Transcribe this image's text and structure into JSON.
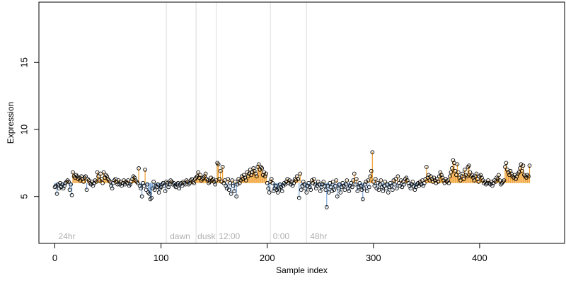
{
  "chart_data": {
    "type": "scatter",
    "title": "",
    "xlabel": "Sample index",
    "ylabel": "Expression",
    "xlim": [
      -15,
      480
    ],
    "ylim": [
      1.5,
      19.5
    ],
    "xticks": [
      0,
      100,
      200,
      300,
      400
    ],
    "yticks": [
      5,
      10,
      15
    ],
    "baseline": 6.0,
    "colors": {
      "above_baseline": "#f0a030",
      "below_baseline": "#7aa6d8",
      "vertical_lines": "#dcdcdc",
      "vertical_labels": "#b0b0b0",
      "point_stroke": "#000000",
      "axis": "#000000"
    },
    "vertical_markers": [
      {
        "x": 105,
        "label": "24hr",
        "label_x": 2
      },
      {
        "x": 133,
        "label": "dawn",
        "label_x": 107
      },
      {
        "x": 152,
        "label": "dusk",
        "label_x": 133
      },
      {
        "x": 203,
        "label": "12:00",
        "label_x": 153
      },
      {
        "x": 237,
        "label": "0:00",
        "label_x": 204
      },
      {
        "x": null,
        "label": "48hr",
        "label_x": 239
      }
    ],
    "values": [
      5.7,
      5.8,
      5.2,
      5.9,
      5.6,
      6.0,
      5.7,
      5.9,
      5.6,
      5.8,
      6.0,
      6.1,
      6.2,
      6.1,
      5.5,
      5.9,
      5.1,
      6.8,
      6.5,
      6.4,
      6.6,
      6.5,
      6.3,
      6.4,
      6.2,
      6.5,
      6.3,
      6.1,
      6.4,
      6.5,
      5.5,
      6.3,
      6.2,
      6.0,
      5.9,
      6.1,
      5.8,
      6.0,
      6.2,
      6.1,
      6.8,
      6.5,
      6.2,
      6.7,
      6.3,
      6.0,
      6.8,
      6.4,
      6.6,
      6.5,
      6.3,
      6.2,
      6.1,
      5.8,
      5.6,
      6.0,
      6.2,
      6.3,
      6.1,
      5.9,
      6.2,
      5.9,
      6.1,
      5.8,
      6.0,
      6.2,
      5.9,
      6.1,
      6.0,
      6.2,
      5.8,
      5.9,
      6.1,
      6.3,
      6.5,
      6.4,
      6.2,
      6.1,
      6.0,
      7.1,
      5.8,
      5.6,
      5.0,
      6.0,
      5.8,
      7.0,
      5.5,
      5.9,
      5.3,
      5.2,
      4.8,
      4.9,
      5.6,
      6.1,
      5.5,
      5.8,
      5.7,
      5.9,
      5.3,
      5.6,
      5.7,
      5.9,
      6.0,
      5.8,
      5.4,
      6.1,
      6.0,
      5.7,
      5.9,
      6.2,
      6.1,
      5.9,
      6.0,
      5.8,
      5.7,
      5.9,
      6.0,
      5.6,
      5.9,
      6.0,
      5.8,
      6.1,
      6.0,
      5.9,
      6.2,
      6.1,
      5.9,
      6.0,
      6.2,
      6.3,
      6.1,
      6.0,
      6.3,
      6.4,
      6.5,
      6.8,
      6.4,
      6.6,
      6.2,
      6.3,
      6.4,
      6.5,
      6.7,
      6.3,
      6.2,
      6.0,
      6.1,
      6.4,
      6.2,
      6.3,
      6.1,
      5.9,
      6.2,
      7.5,
      7.4,
      6.3,
      6.9,
      6.1,
      7.2,
      6.0,
      6.2,
      5.8,
      5.6,
      6.3,
      5.5,
      6.0,
      5.2,
      6.2,
      5.8,
      5.4,
      6.1,
      5.0,
      5.9,
      6.3,
      6.0,
      6.2,
      6.5,
      6.3,
      6.6,
      6.4,
      6.2,
      6.8,
      6.5,
      6.7,
      7.0,
      6.6,
      6.8,
      7.1,
      6.9,
      6.7,
      6.5,
      7.2,
      7.4,
      7.0,
      7.2,
      7.1,
      6.6,
      6.8,
      6.5,
      6.7,
      6.0,
      5.6,
      5.3,
      6.1,
      6.3,
      6.0,
      5.4,
      5.6,
      5.8,
      5.5,
      5.3,
      5.6,
      5.9,
      5.7,
      5.4,
      5.8,
      6.0,
      5.9,
      6.1,
      6.3,
      6.0,
      6.2,
      5.9,
      6.1,
      5.8,
      6.0,
      6.3,
      6.2,
      6.5,
      6.3,
      4.9,
      6.7,
      5.5,
      5.8,
      6.1,
      5.9,
      5.6,
      5.3,
      5.8,
      6.0,
      5.7,
      5.5,
      6.2,
      6.0,
      6.3,
      5.9,
      5.6,
      5.8,
      6.1,
      5.9,
      5.4,
      5.7,
      5.9,
      6.1,
      5.8,
      5.5,
      4.2,
      5.8,
      5.3,
      6.0,
      5.7,
      5.4,
      6.1,
      5.5,
      5.8,
      6.2,
      5.0,
      5.6,
      5.9,
      5.3,
      5.7,
      6.0,
      5.8,
      5.5,
      5.9,
      6.2,
      5.6,
      5.4,
      5.8,
      6.0,
      5.7,
      6.2,
      6.7,
      5.9,
      6.3,
      5.4,
      5.7,
      6.0,
      5.8,
      5.5,
      4.8,
      5.6,
      5.9,
      6.1,
      5.4,
      6.2,
      5.7,
      6.5,
      6.9,
      8.3,
      6.1,
      5.8,
      6.3,
      5.6,
      6.0,
      5.5,
      5.9,
      6.2,
      5.7,
      5.4,
      5.8,
      6.1,
      5.6,
      5.9,
      5.3,
      5.7,
      6.0,
      5.8,
      5.5,
      6.2,
      5.9,
      6.3,
      5.6,
      6.5,
      6.0,
      5.8,
      6.2,
      5.7,
      6.1,
      5.9,
      6.3,
      6.4,
      6.2,
      6.0,
      5.8,
      5.6,
      5.9,
      6.1,
      5.8,
      5.5,
      5.7,
      5.9,
      6.0,
      5.8,
      6.1,
      5.9,
      6.2,
      5.8,
      6.0,
      6.3,
      7.2,
      6.4,
      6.6,
      6.2,
      6.5,
      6.3,
      6.1,
      6.4,
      6.2,
      6.0,
      6.3,
      6.1,
      6.5,
      6.8,
      6.6,
      6.4,
      6.2,
      6.0,
      6.3,
      6.1,
      6.2,
      6.0,
      6.5,
      6.8,
      7.1,
      7.7,
      7.5,
      6.9,
      6.6,
      7.4,
      6.8,
      6.4,
      6.2,
      6.5,
      6.7,
      6.3,
      7.0,
      6.6,
      6.5,
      7.2,
      7.3,
      6.8,
      6.5,
      6.6,
      6.4,
      6.2,
      6.5,
      6.7,
      6.3,
      6.1,
      6.5,
      6.6,
      6.4,
      6.2,
      6.0,
      6.1,
      5.9,
      6.0,
      6.2,
      6.0,
      5.9,
      6.1,
      5.8,
      6.0,
      6.2,
      6.1,
      6.4,
      6.3,
      6.6,
      6.2,
      5.9,
      6.0,
      6.1,
      6.2,
      7.2,
      7.5,
      7.0,
      6.8,
      6.6,
      6.9,
      6.7,
      6.5,
      6.4,
      6.6,
      6.3,
      6.5,
      6.7,
      6.8,
      7.1,
      7.4,
      6.9,
      7.3,
      6.6,
      6.5,
      6.4,
      6.6,
      6.5,
      7.3
    ]
  }
}
